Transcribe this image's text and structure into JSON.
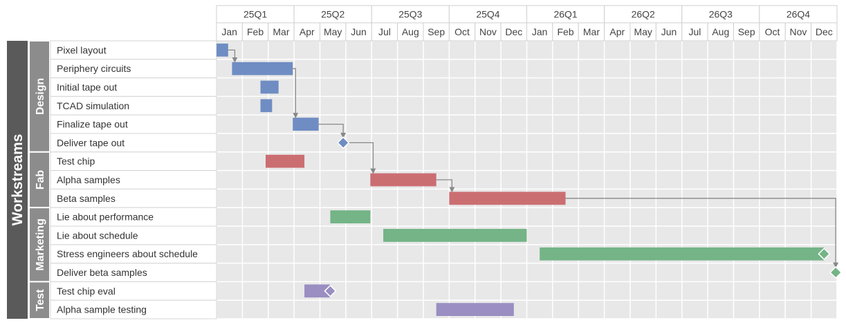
{
  "chart_data": {
    "type": "gantt",
    "root_label": "Workstreams",
    "quarters": [
      "25Q1",
      "25Q2",
      "25Q3",
      "25Q4",
      "26Q1",
      "26Q2",
      "26Q3",
      "26Q4"
    ],
    "months": [
      "Jan",
      "Feb",
      "Mar",
      "Apr",
      "May",
      "Jun",
      "Jul",
      "Aug",
      "Sep",
      "Oct",
      "Nov",
      "Dec",
      "Jan",
      "Feb",
      "Mar",
      "Apr",
      "May",
      "Jun",
      "Jul",
      "Aug",
      "Sep",
      "Oct",
      "Nov",
      "Dec"
    ],
    "x_range_months": [
      0,
      24
    ],
    "grid": true,
    "groups": [
      {
        "name": "Design",
        "color": "#6f8dc3",
        "tasks": [
          0,
          1,
          2,
          3,
          4,
          5
        ]
      },
      {
        "name": "Fab",
        "color": "#cb6e72",
        "tasks": [
          6,
          7,
          8
        ]
      },
      {
        "name": "Marketing",
        "color": "#74b486",
        "tasks": [
          9,
          10,
          11,
          12
        ]
      },
      {
        "name": "Test",
        "color": "#9a8ec2",
        "tasks": [
          13,
          14
        ]
      }
    ],
    "tasks": [
      {
        "name": "Pixel layout",
        "start": 0.0,
        "end": 0.45
      },
      {
        "name": "Periphery circuits",
        "start": 0.6,
        "end": 2.95
      },
      {
        "name": "Initial tape out",
        "start": 1.7,
        "end": 2.4
      },
      {
        "name": "TCAD simulation",
        "start": 1.7,
        "end": 2.15
      },
      {
        "name": "Finalize tape out",
        "start": 2.95,
        "end": 3.95
      },
      {
        "name": "Deliver tape out",
        "milestone": 4.9
      },
      {
        "name": "Test chip",
        "start": 1.9,
        "end": 3.4
      },
      {
        "name": "Alpha samples",
        "start": 5.95,
        "end": 8.5
      },
      {
        "name": "Beta samples",
        "start": 9.0,
        "end": 13.5
      },
      {
        "name": "Lie about performance",
        "start": 4.4,
        "end": 5.95
      },
      {
        "name": "Lie about schedule",
        "start": 6.45,
        "end": 12.0
      },
      {
        "name": "Stress engineers about schedule",
        "start": 12.5,
        "end": 23.5,
        "milestone": 23.5
      },
      {
        "name": "Deliver beta samples",
        "milestone": 23.95
      },
      {
        "name": "Test chip eval",
        "start": 3.4,
        "end": 4.4,
        "milestone": 4.4
      },
      {
        "name": "Alpha sample testing",
        "start": 8.5,
        "end": 11.5
      }
    ],
    "dependencies": [
      {
        "from": 0,
        "to": 1
      },
      {
        "from": 1,
        "to": 4
      },
      {
        "from": 4,
        "to": 5
      },
      {
        "from": 5,
        "to": 7
      },
      {
        "from": 7,
        "to": 8
      },
      {
        "from": 8,
        "to": 12
      }
    ]
  }
}
